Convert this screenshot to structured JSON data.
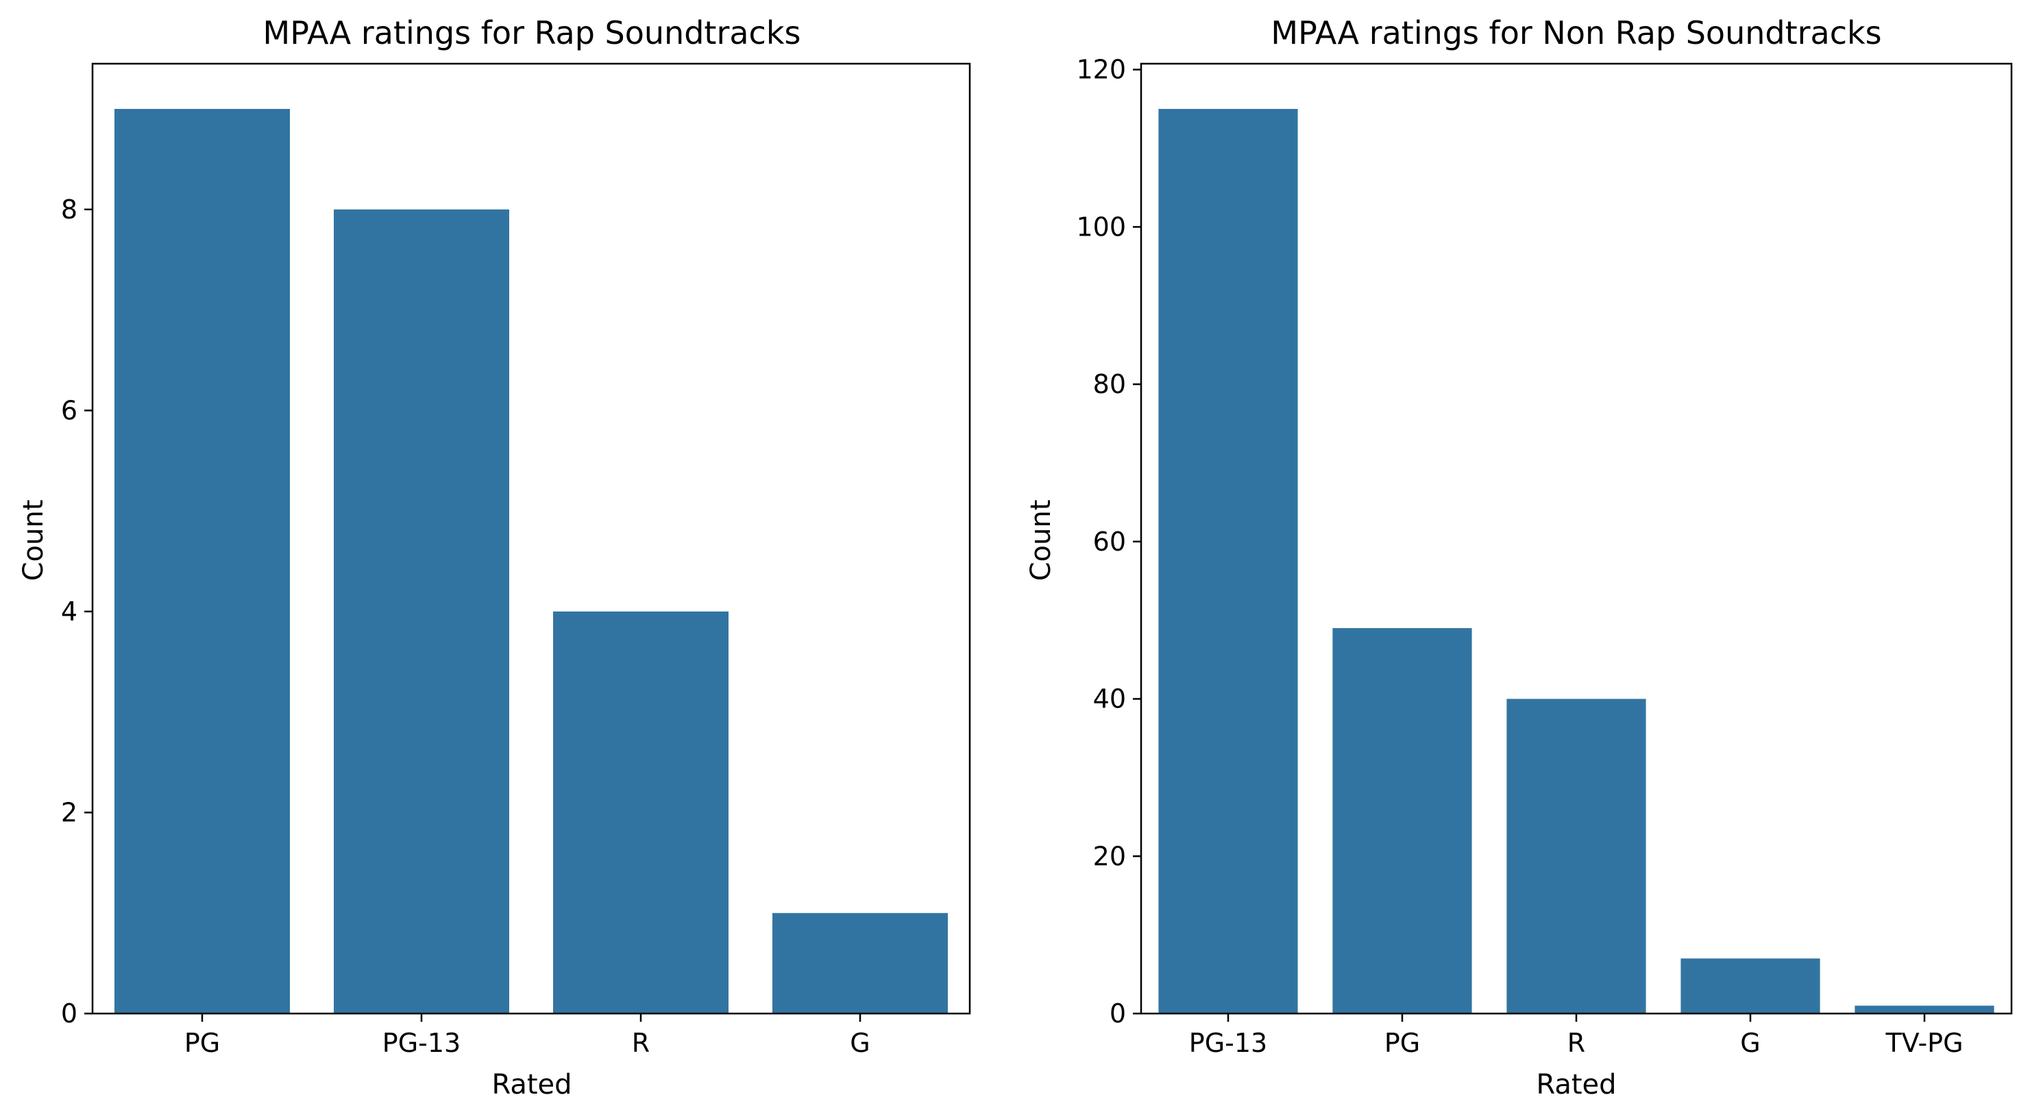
{
  "chart_data": [
    {
      "type": "bar",
      "title": "MPAA ratings for Rap Soundtracks",
      "xlabel": "Rated",
      "ylabel": "Count",
      "categories": [
        "PG",
        "PG-13",
        "R",
        "G"
      ],
      "values": [
        9,
        8,
        4,
        1
      ],
      "ylim": [
        0,
        9.45
      ],
      "yticks": [
        0,
        2,
        4,
        6,
        8
      ],
      "grid": false,
      "bar_color": "#3274a1"
    },
    {
      "type": "bar",
      "title": "MPAA ratings for Non Rap Soundtracks",
      "xlabel": "Rated",
      "ylabel": "Count",
      "categories": [
        "PG-13",
        "PG",
        "R",
        "G",
        "TV-PG"
      ],
      "values": [
        115,
        49,
        40,
        7,
        1
      ],
      "ylim": [
        0,
        120.75
      ],
      "yticks": [
        0,
        20,
        40,
        60,
        80,
        100,
        120
      ],
      "grid": false,
      "bar_color": "#3274a1"
    }
  ]
}
